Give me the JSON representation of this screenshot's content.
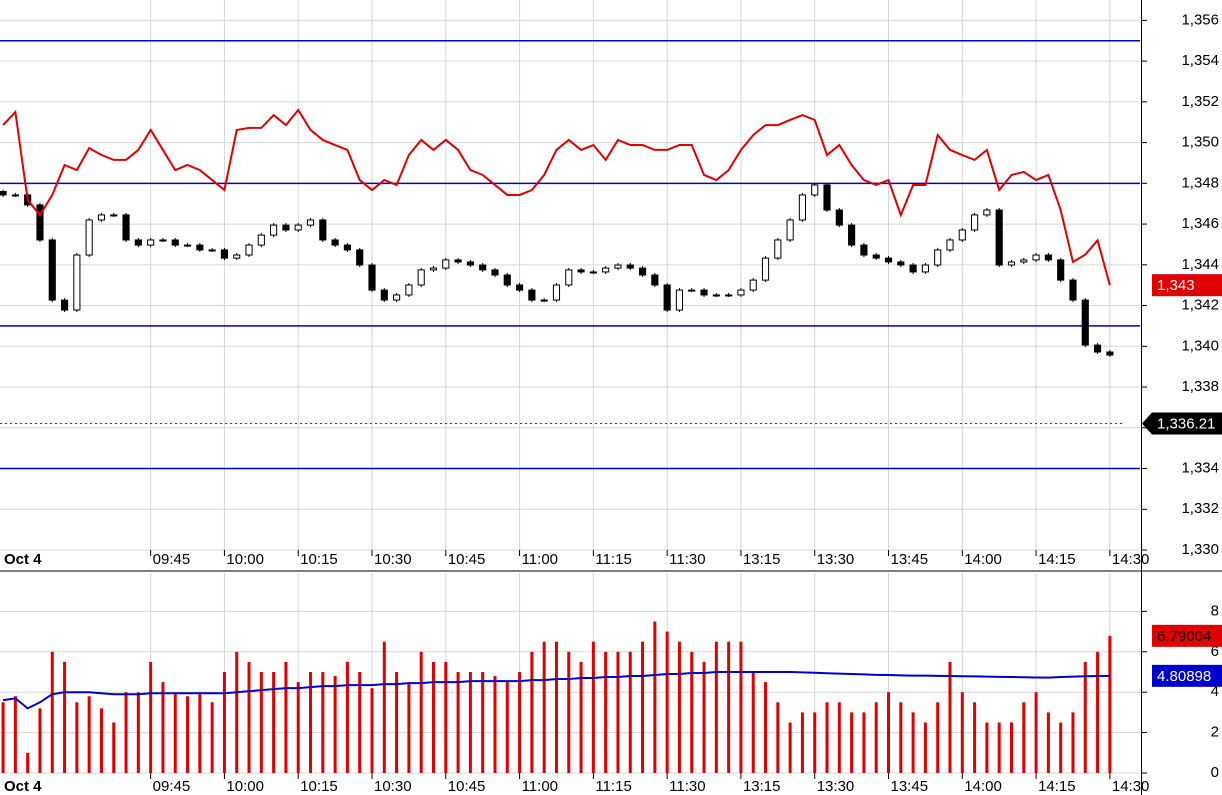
{
  "chart_data": [
    {
      "type": "candlestick",
      "date_label": "Oct 4",
      "open": [
        1347.6,
        1347.43,
        1347.43,
        1346.94,
        1345.22,
        1342.27,
        1341.78,
        1344.48,
        1346.2,
        1346.45,
        1346.45,
        1345.22,
        1344.97,
        1345.22,
        1345.22,
        1344.97,
        1344.97,
        1344.73,
        1344.73,
        1344.33,
        1344.48,
        1344.97,
        1345.46,
        1345.95,
        1345.71,
        1345.95,
        1346.2,
        1345.22,
        1344.97,
        1344.73,
        1343.99,
        1342.76,
        1342.27,
        1342.52,
        1343.01,
        1343.75,
        1343.84,
        1344.24,
        1344.14,
        1343.99,
        1343.75,
        1343.5,
        1343.01,
        1342.76,
        1342.27,
        1342.27,
        1343.01,
        1343.75,
        1343.65,
        1343.65,
        1343.84,
        1343.99,
        1343.84,
        1343.5,
        1343.01,
        1341.78,
        1342.76,
        1342.76,
        1342.52,
        1342.52,
        1342.52,
        1342.76,
        1343.25,
        1344.33,
        1345.22,
        1346.2,
        1347.43,
        1347.92,
        1346.69,
        1345.95,
        1344.97,
        1344.48,
        1344.33,
        1344.14,
        1343.99,
        1343.65,
        1343.99,
        1344.73,
        1345.22,
        1345.71,
        1346.45,
        1346.69,
        1343.99,
        1344.14,
        1344.24,
        1344.48,
        1344.24,
        1343.25,
        1342.27,
        1340.06,
        1339.72
      ],
      "high": [
        1347.7,
        1347.53,
        1347.53,
        1347.04,
        1345.32,
        1342.37,
        1344.58,
        1346.3,
        1346.55,
        1346.55,
        1346.55,
        1345.32,
        1345.32,
        1345.32,
        1345.32,
        1345.07,
        1345.07,
        1344.83,
        1344.83,
        1344.58,
        1345.07,
        1345.56,
        1346.05,
        1346.05,
        1346.05,
        1346.3,
        1346.3,
        1345.32,
        1345.07,
        1344.83,
        1344.09,
        1342.86,
        1342.62,
        1343.11,
        1343.85,
        1343.94,
        1344.34,
        1344.34,
        1344.24,
        1344.09,
        1343.85,
        1343.6,
        1343.11,
        1342.86,
        1342.37,
        1343.11,
        1343.85,
        1343.85,
        1343.75,
        1343.94,
        1344.09,
        1344.09,
        1343.94,
        1343.6,
        1343.11,
        1342.86,
        1342.86,
        1342.86,
        1342.62,
        1342.62,
        1342.86,
        1343.35,
        1344.43,
        1345.32,
        1346.3,
        1347.53,
        1348.02,
        1348.02,
        1346.79,
        1346.05,
        1345.07,
        1344.58,
        1344.43,
        1344.24,
        1344.09,
        1344.09,
        1344.83,
        1345.32,
        1345.81,
        1346.55,
        1346.79,
        1346.79,
        1344.24,
        1344.34,
        1344.58,
        1344.58,
        1344.34,
        1343.35,
        1342.37,
        1340.16,
        1339.82
      ],
      "low": [
        1347.33,
        1347.33,
        1346.84,
        1345.12,
        1342.17,
        1341.68,
        1341.68,
        1344.38,
        1346.1,
        1346.35,
        1345.12,
        1344.87,
        1344.87,
        1345.12,
        1344.87,
        1344.87,
        1344.63,
        1344.63,
        1344.23,
        1344.23,
        1344.38,
        1344.87,
        1345.36,
        1345.61,
        1345.61,
        1345.85,
        1345.12,
        1344.87,
        1344.63,
        1343.89,
        1342.66,
        1342.17,
        1342.17,
        1342.42,
        1342.91,
        1343.65,
        1343.74,
        1344.04,
        1343.89,
        1343.65,
        1343.4,
        1342.91,
        1342.66,
        1342.17,
        1342.17,
        1342.17,
        1342.91,
        1343.55,
        1343.55,
        1343.55,
        1343.74,
        1343.74,
        1343.4,
        1342.91,
        1341.68,
        1341.68,
        1342.66,
        1342.42,
        1342.42,
        1342.42,
        1342.42,
        1342.66,
        1343.15,
        1344.23,
        1345.12,
        1346.1,
        1347.33,
        1346.59,
        1345.85,
        1344.87,
        1344.38,
        1344.23,
        1344.04,
        1343.89,
        1343.55,
        1343.55,
        1343.89,
        1344.63,
        1345.12,
        1345.61,
        1346.35,
        1343.89,
        1343.89,
        1344.04,
        1344.14,
        1344.14,
        1343.15,
        1342.17,
        1339.96,
        1339.62,
        1339.47
      ],
      "close": [
        1347.43,
        1347.43,
        1346.94,
        1345.22,
        1342.27,
        1341.78,
        1344.48,
        1346.2,
        1346.45,
        1346.45,
        1345.22,
        1344.97,
        1345.22,
        1345.22,
        1344.97,
        1344.97,
        1344.73,
        1344.73,
        1344.33,
        1344.48,
        1344.97,
        1345.46,
        1345.95,
        1345.71,
        1345.95,
        1346.2,
        1345.22,
        1344.97,
        1344.73,
        1343.99,
        1342.76,
        1342.27,
        1342.52,
        1343.01,
        1343.75,
        1343.84,
        1344.24,
        1344.14,
        1343.99,
        1343.75,
        1343.5,
        1343.01,
        1342.76,
        1342.27,
        1342.27,
        1343.01,
        1343.75,
        1343.65,
        1343.65,
        1343.84,
        1343.99,
        1343.84,
        1343.5,
        1343.01,
        1341.78,
        1342.76,
        1342.76,
        1342.52,
        1342.52,
        1342.52,
        1342.76,
        1343.25,
        1344.33,
        1345.22,
        1346.2,
        1347.43,
        1347.92,
        1346.69,
        1345.95,
        1344.97,
        1344.48,
        1344.33,
        1344.14,
        1343.99,
        1343.65,
        1343.99,
        1344.73,
        1345.22,
        1345.71,
        1346.45,
        1346.69,
        1343.99,
        1344.14,
        1344.24,
        1344.48,
        1344.24,
        1343.25,
        1342.27,
        1340.06,
        1339.72,
        1339.57
      ],
      "color_up": "#ffffff",
      "color_down": "#000000",
      "overlay": {
        "color": "#e00000",
        "values": [
          1350.86,
          1351.5,
          1347.18,
          1346.44,
          1347.43,
          1348.9,
          1348.65,
          1349.73,
          1349.39,
          1349.15,
          1349.15,
          1349.64,
          1350.62,
          1349.64,
          1348.65,
          1348.9,
          1348.65,
          1348.16,
          1347.67,
          1350.62,
          1350.72,
          1350.72,
          1351.35,
          1350.86,
          1351.6,
          1350.62,
          1350.13,
          1349.88,
          1349.64,
          1348.16,
          1347.67,
          1348.16,
          1347.92,
          1349.39,
          1350.13,
          1349.64,
          1350.13,
          1349.64,
          1348.65,
          1348.41,
          1347.92,
          1347.43,
          1347.43,
          1347.67,
          1348.41,
          1349.64,
          1350.13,
          1349.64,
          1349.88,
          1349.15,
          1350.13,
          1349.88,
          1349.88,
          1349.64,
          1349.64,
          1349.88,
          1349.88,
          1348.41,
          1348.16,
          1348.65,
          1349.64,
          1350.37,
          1350.86,
          1350.86,
          1351.11,
          1351.35,
          1351.11,
          1349.39,
          1349.88,
          1348.9,
          1348.16,
          1347.92,
          1348.16,
          1346.44,
          1347.92,
          1347.92,
          1350.37,
          1349.64,
          1349.39,
          1349.15,
          1349.64,
          1347.67,
          1348.41,
          1348.56,
          1348.16,
          1348.41,
          1346.69,
          1344.14,
          1344.5,
          1345.2,
          1343.0
        ]
      },
      "hlines": {
        "color": "#0000cc",
        "values": [
          1355,
          1348,
          1341,
          1334
        ]
      },
      "markers": [
        {
          "value": 1343,
          "label": "1,343",
          "color": "#e00000",
          "text_color": "#ffffff"
        },
        {
          "value": 1336.21,
          "label": "1,336.21",
          "color": "#000000",
          "text_color": "#ffffff",
          "dotted": true,
          "line_color": "#e00000"
        }
      ],
      "xlim": [
        -0.25,
        92.45
      ],
      "xticks": [
        {
          "value": 12,
          "label": "09:45"
        },
        {
          "value": 18,
          "label": "10:00"
        },
        {
          "value": 24,
          "label": "10:15"
        },
        {
          "value": 30,
          "label": "10:30"
        },
        {
          "value": 36,
          "label": "10:45"
        },
        {
          "value": 42,
          "label": "11:00"
        },
        {
          "value": 48,
          "label": "11:15"
        },
        {
          "value": 54,
          "label": "11:30"
        },
        {
          "value": 60,
          "label": "13:15"
        },
        {
          "value": 66,
          "label": "13:30"
        },
        {
          "value": 72,
          "label": "13:45"
        },
        {
          "value": 78,
          "label": "14:00"
        },
        {
          "value": 84,
          "label": "14:15"
        },
        {
          "value": 90,
          "label": "14:30"
        }
      ],
      "ylim": [
        1330,
        1357
      ],
      "yticks": [
        {
          "value": 1330,
          "label": "1,330"
        },
        {
          "value": 1332,
          "label": "1,332"
        },
        {
          "value": 1334,
          "label": "1,334"
        },
        {
          "value": 1336,
          "label": "1,336"
        },
        {
          "value": 1338,
          "label": "1,338"
        },
        {
          "value": 1340,
          "label": "1,340"
        },
        {
          "value": 1342,
          "label": "1,342"
        },
        {
          "value": 1344,
          "label": "1,344"
        },
        {
          "value": 1346,
          "label": "1,346"
        },
        {
          "value": 1348,
          "label": "1,348"
        },
        {
          "value": 1350,
          "label": "1,350"
        },
        {
          "value": 1352,
          "label": "1,352"
        },
        {
          "value": 1354,
          "label": "1,354"
        },
        {
          "value": 1356,
          "label": "1,356"
        }
      ],
      "grid": true
    },
    {
      "type": "bar",
      "date_label": "Oct 4",
      "color": "#e00000",
      "values": [
        3.5,
        3.8,
        1.0,
        3.2,
        6.0,
        5.5,
        3.5,
        3.8,
        3.2,
        2.5,
        4.0,
        4.0,
        5.5,
        4.5,
        4.0,
        3.8,
        4.0,
        3.5,
        5.0,
        6.0,
        5.5,
        5.0,
        5.0,
        5.5,
        4.5,
        5.0,
        5.0,
        4.8,
        5.5,
        5.0,
        4.2,
        6.5,
        5.0,
        4.5,
        6.0,
        5.5,
        5.5,
        5.0,
        5.0,
        5.0,
        4.8,
        4.5,
        5.0,
        6.0,
        6.5,
        6.5,
        6.0,
        5.5,
        6.5,
        6.0,
        6.0,
        6.0,
        6.5,
        7.5,
        7.0,
        6.5,
        6.0,
        5.5,
        6.5,
        6.5,
        6.5,
        5.0,
        4.5,
        3.5,
        2.5,
        3.0,
        3.0,
        3.5,
        3.5,
        3.0,
        3.0,
        3.5,
        4.0,
        3.5,
        3.0,
        2.5,
        3.5,
        5.5,
        4.0,
        3.5,
        2.5,
        2.5,
        2.5,
        3.5,
        4.0,
        3.0,
        2.5,
        3.0,
        5.5,
        6.0,
        6.79004
      ],
      "marker_text_color": "#000000",
      "overlay": {
        "color": "#0000cc",
        "text_color": "#ffffff",
        "values": [
          3.6,
          3.7,
          3.2,
          3.5,
          3.9,
          4.0,
          4.0,
          4.0,
          3.95,
          3.9,
          3.9,
          3.9,
          3.95,
          3.95,
          3.95,
          3.95,
          3.95,
          3.95,
          3.95,
          4.0,
          4.05,
          4.1,
          4.15,
          4.2,
          4.2,
          4.25,
          4.3,
          4.3,
          4.35,
          4.35,
          4.35,
          4.4,
          4.4,
          4.45,
          4.45,
          4.5,
          4.5,
          4.5,
          4.55,
          4.55,
          4.55,
          4.55,
          4.55,
          4.6,
          4.6,
          4.65,
          4.65,
          4.7,
          4.7,
          4.75,
          4.75,
          4.8,
          4.8,
          4.85,
          4.9,
          4.9,
          4.95,
          4.95,
          5.0,
          5.0,
          5.0,
          5.0,
          5.0,
          5.0,
          5.0,
          4.98,
          4.96,
          4.94,
          4.92,
          4.9,
          4.88,
          4.86,
          4.85,
          4.83,
          4.82,
          4.82,
          4.81,
          4.8,
          4.79,
          4.78,
          4.77,
          4.76,
          4.75,
          4.74,
          4.73,
          4.72,
          4.75,
          4.77,
          4.79,
          4.8,
          4.80898
        ]
      },
      "xlim": [
        -0.25,
        92.45
      ],
      "xticks": [
        {
          "value": 12,
          "label": "09:45"
        },
        {
          "value": 18,
          "label": "10:00"
        },
        {
          "value": 24,
          "label": "10:15"
        },
        {
          "value": 30,
          "label": "10:30"
        },
        {
          "value": 36,
          "label": "10:45"
        },
        {
          "value": 42,
          "label": "11:00"
        },
        {
          "value": 48,
          "label": "11:15"
        },
        {
          "value": 54,
          "label": "11:30"
        },
        {
          "value": 60,
          "label": "13:15"
        },
        {
          "value": 66,
          "label": "13:30"
        },
        {
          "value": 72,
          "label": "13:45"
        },
        {
          "value": 78,
          "label": "14:00"
        },
        {
          "value": 84,
          "label": "14:15"
        },
        {
          "value": 90,
          "label": "14:30"
        }
      ],
      "ylim": [
        0,
        9.9
      ],
      "yticks": [
        0,
        2,
        4,
        6,
        8
      ],
      "grid": true
    }
  ]
}
